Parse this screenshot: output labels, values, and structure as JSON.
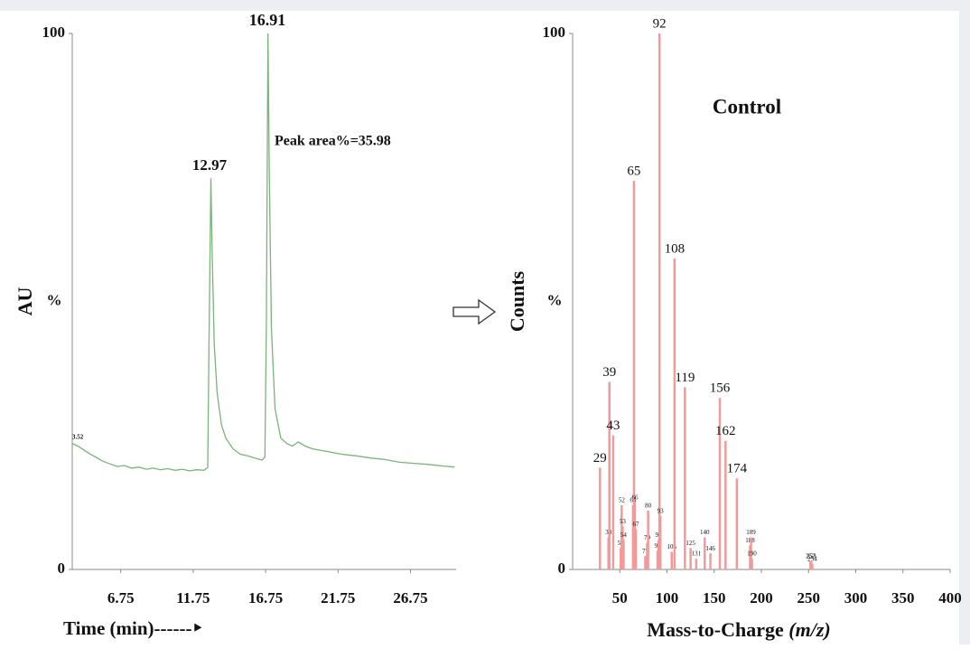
{
  "chart_data": [
    {
      "type": "line",
      "xlabel": "Time (min)------‣",
      "ylabel": "AU",
      "y_unit": "%",
      "xlim": [
        3.4,
        29.9
      ],
      "ylim": [
        0,
        100
      ],
      "xticks": [
        6.75,
        11.75,
        16.75,
        21.75,
        26.75
      ],
      "yticks": [
        0,
        100
      ],
      "color": "#7cb27c",
      "x": [
        3.4,
        3.8,
        4.2,
        4.6,
        5.0,
        5.5,
        6.0,
        6.5,
        7.0,
        7.5,
        8.0,
        8.5,
        9.0,
        9.5,
        10.0,
        10.5,
        11.0,
        11.5,
        12.0,
        12.5,
        12.75,
        12.85,
        12.97,
        13.05,
        13.2,
        13.4,
        13.7,
        14.0,
        14.5,
        15.0,
        15.5,
        16.0,
        16.5,
        16.7,
        16.8,
        16.91,
        17.0,
        17.15,
        17.4,
        17.8,
        18.2,
        18.6,
        19.0,
        19.5,
        20.0,
        21,
        22,
        23,
        24,
        25,
        26,
        27,
        28,
        29,
        29.8
      ],
      "values": [
        23.5,
        23,
        22.3,
        21.6,
        21,
        20.2,
        19.7,
        19.2,
        19.4,
        18.9,
        19.1,
        18.7,
        18.9,
        18.6,
        18.8,
        18.5,
        18.7,
        18.4,
        18.6,
        18.5,
        19,
        45,
        73,
        60,
        42,
        33,
        27,
        24.5,
        22.5,
        21.5,
        21.2,
        20.8,
        20.4,
        21,
        45,
        100,
        75,
        45,
        30,
        24.5,
        23.5,
        23,
        23.8,
        23,
        22.5,
        22,
        21.5,
        21.2,
        20.8,
        20.5,
        20,
        19.8,
        19.6,
        19.3,
        19.1
      ],
      "annotations": [
        "16.91",
        "12.97",
        "Peak area%=35.98",
        "3.52"
      ]
    },
    {
      "type": "bar",
      "title": "Control",
      "xlabel": "Mass-to-Charge",
      "xlabel_unit": "(m/z)",
      "ylabel": "Counts",
      "y_unit": "%",
      "xlim": [
        0,
        400
      ],
      "ylim": [
        0,
        100
      ],
      "xticks": [
        50,
        100,
        150,
        200,
        250,
        300,
        350,
        400
      ],
      "yticks": [
        0,
        100
      ],
      "color": "#f29a9a",
      "x": [
        29,
        38,
        39,
        43,
        51,
        52,
        53,
        54,
        64,
        65,
        66,
        67,
        77,
        79,
        80,
        90,
        91,
        92,
        93,
        105,
        108,
        119,
        125,
        131,
        140,
        146,
        156,
        162,
        174,
        188,
        189,
        190,
        252,
        253,
        254
      ],
      "values": [
        19,
        6,
        35,
        25,
        4,
        12,
        8,
        5.5,
        12,
        72.5,
        12.5,
        7.5,
        2.5,
        5,
        11,
        3.5,
        5.5,
        100,
        10,
        3.3,
        58,
        34,
        4,
        2,
        6,
        3,
        32,
        24,
        17,
        4.5,
        6,
        2,
        1.5,
        1.5,
        1
      ]
    }
  ]
}
